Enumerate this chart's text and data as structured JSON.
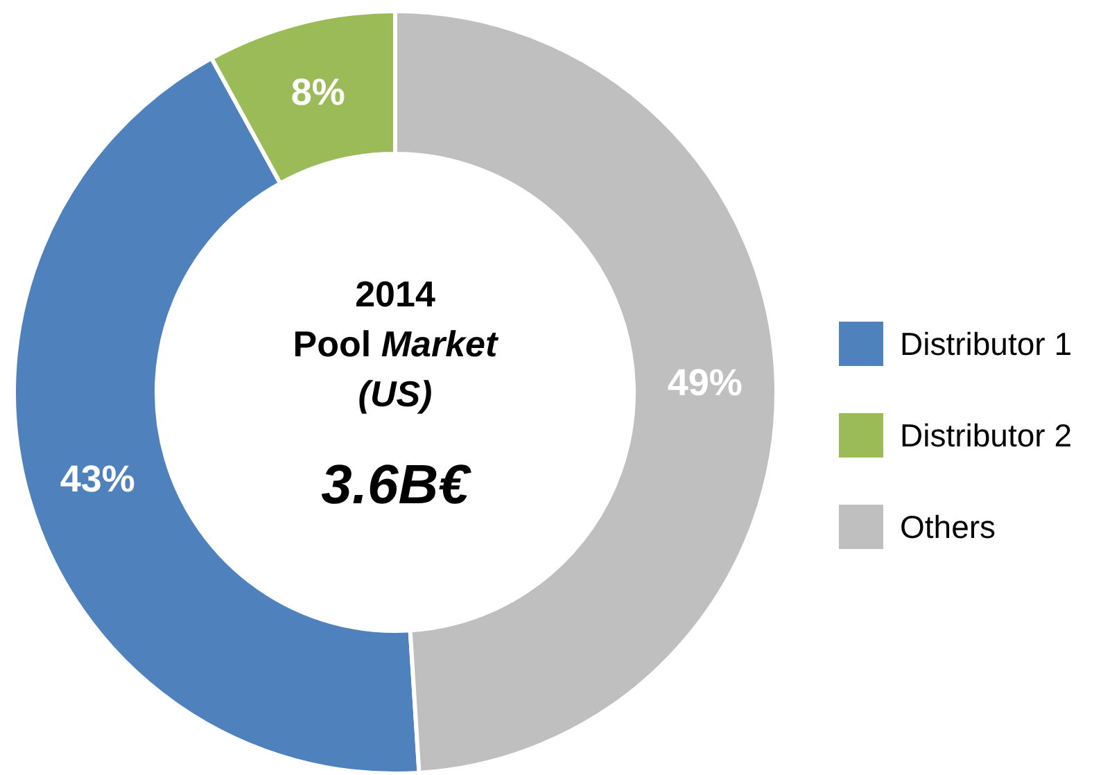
{
  "chart_data": {
    "type": "donut",
    "title": "2014 Pool Market (US)",
    "annotations": [
      "3.6B€"
    ],
    "categories": [
      "Distributor 1",
      "Distributor 2",
      "Others"
    ],
    "values": [
      43,
      8,
      49
    ],
    "colors": [
      "#4f81bd",
      "#9bbb59",
      "#bfbfbf"
    ],
    "value_labels": [
      "43%",
      "8%",
      "49%"
    ],
    "legend": "right"
  }
}
